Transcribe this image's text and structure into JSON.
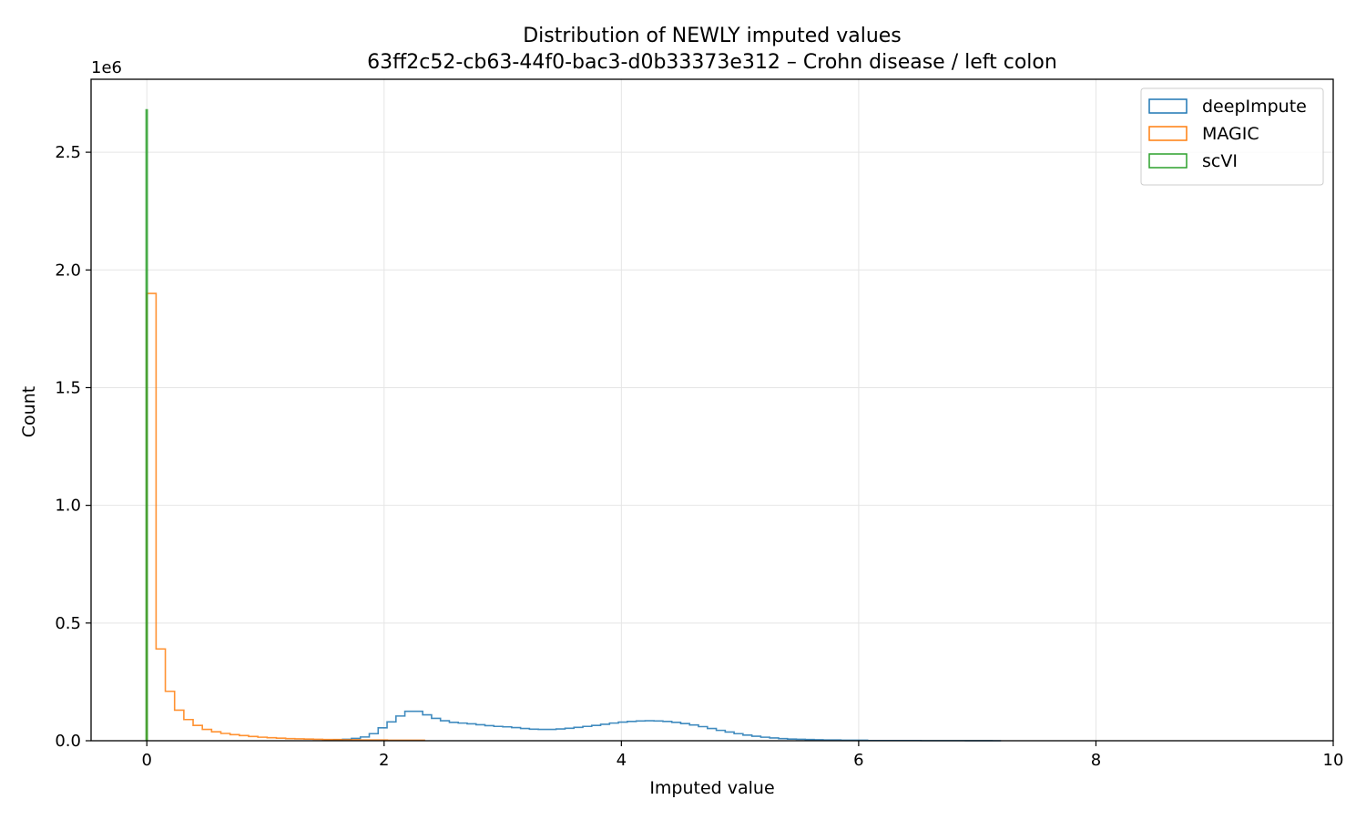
{
  "chart_data": {
    "type": "histogram",
    "title": "Distribution of NEWLY imputed values",
    "subtitle": "63ff2c52-cb63-44f0-bac3-d0b33373e312 – Crohn disease / left colon",
    "xlabel": "Imputed value",
    "ylabel": "Count",
    "y_offset_label": "1e6",
    "xlim": [
      -0.47,
      10
    ],
    "ylim": [
      0,
      2.81
    ],
    "y_scale_note": "values in units of 1e6",
    "grid": true,
    "legend_position": "top-right",
    "x_ticks": [
      0,
      2,
      4,
      6,
      8,
      10
    ],
    "x_tick_labels": [
      "0",
      "2",
      "4",
      "6",
      "8",
      "10"
    ],
    "y_ticks": [
      0,
      0.5,
      1.0,
      1.5,
      2.0,
      2.5
    ],
    "y_tick_labels": [
      "0.0",
      "0.5",
      "1.0",
      "1.5",
      "2.0",
      "2.5"
    ],
    "series": [
      {
        "name": "deepImpute",
        "color": "#1f77b4",
        "bin_start": 1.5,
        "bin_width": 0.075,
        "values": [
          0.001,
          0.003,
          0.006,
          0.01,
          0.016,
          0.03,
          0.055,
          0.08,
          0.105,
          0.125,
          0.125,
          0.11,
          0.095,
          0.085,
          0.078,
          0.075,
          0.072,
          0.068,
          0.064,
          0.061,
          0.059,
          0.056,
          0.052,
          0.049,
          0.048,
          0.048,
          0.05,
          0.053,
          0.057,
          0.061,
          0.065,
          0.07,
          0.075,
          0.079,
          0.082,
          0.084,
          0.085,
          0.084,
          0.082,
          0.078,
          0.073,
          0.067,
          0.06,
          0.052,
          0.044,
          0.037,
          0.03,
          0.024,
          0.019,
          0.015,
          0.012,
          0.009,
          0.007,
          0.006,
          0.005,
          0.004,
          0.003,
          0.003,
          0.002,
          0.002,
          0.002,
          0.001,
          0.001,
          0.001,
          0.001,
          0.001,
          0.001,
          0.0005,
          0.0005,
          0.0005,
          0.0005,
          0.0005,
          0.0003,
          0.0002,
          0.0001,
          0
        ]
      },
      {
        "name": "MAGIC",
        "color": "#ff7f0e",
        "bin_start": 0.0,
        "bin_width": 0.078,
        "values": [
          1.9,
          0.39,
          0.21,
          0.13,
          0.09,
          0.065,
          0.048,
          0.038,
          0.031,
          0.026,
          0.022,
          0.018,
          0.015,
          0.013,
          0.011,
          0.009,
          0.008,
          0.007,
          0.006,
          0.005,
          0.005,
          0.004,
          0.004,
          0.003,
          0.003,
          0.003,
          0.002,
          0.002,
          0.002,
          0.002
        ]
      },
      {
        "name": "scVI",
        "color": "#2ca02c",
        "bin_start": -0.006,
        "bin_width": 0.01,
        "values": [
          2.68
        ]
      }
    ]
  }
}
